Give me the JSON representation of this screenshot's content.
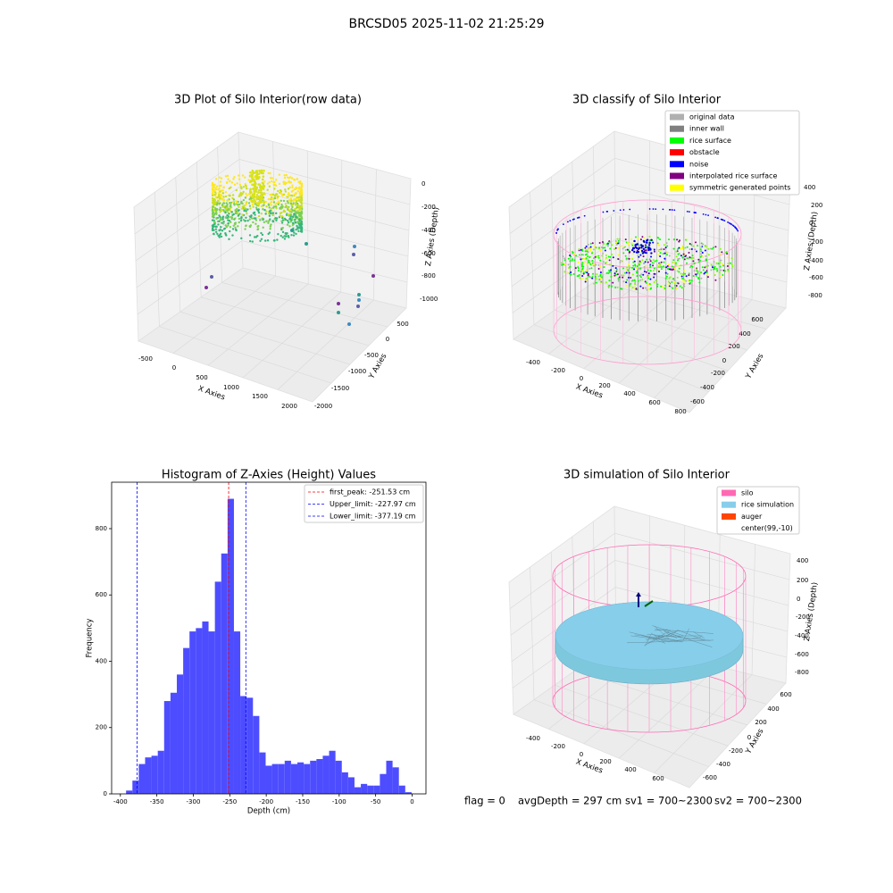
{
  "title": "BRCSD05 2025-11-02 21:25:29",
  "chart_data": [
    {
      "type": "scatter3d",
      "title": "3D Plot of Silo Interior(row data)",
      "x_label": "X Axies",
      "y_label": "Y Axies",
      "z_label": "Z Axies (Depth)",
      "xticks": [
        -500,
        0,
        500,
        1000,
        1500,
        2000
      ],
      "yticks": [
        500,
        0,
        -500,
        -1000,
        -1500,
        -2000
      ],
      "zticks": [
        0,
        -200,
        -400,
        -600,
        -800,
        -1000
      ]
    },
    {
      "type": "scatter3d",
      "title": "3D classify of Silo Interior",
      "x_label": "X Axies",
      "y_label": "Y Axies",
      "z_label": "Z Axies (Depth)",
      "xticks": [
        -400,
        -200,
        0,
        200,
        400,
        600,
        800
      ],
      "yticks": [
        600,
        400,
        200,
        0,
        -200,
        -400,
        -600
      ],
      "zticks": [
        400,
        200,
        0,
        -200,
        -400,
        -600,
        -800
      ],
      "legend": [
        {
          "name": "original data",
          "color": "#b0b0b0"
        },
        {
          "name": "inner wall",
          "color": "#808080"
        },
        {
          "name": "rice surface",
          "color": "#00ff00"
        },
        {
          "name": "obstacle",
          "color": "#ff0000"
        },
        {
          "name": "noise",
          "color": "#0000ff"
        },
        {
          "name": "interpolated rice surface",
          "color": "#800080"
        },
        {
          "name": "symmetric generated points",
          "color": "#ffff00"
        }
      ]
    },
    {
      "type": "histogram",
      "title": "Histogram of Z-Axies (Height) Values",
      "x_label": "Depth (cm)",
      "y_label": "Frequency",
      "color": "#4d4dff",
      "bins": [
        -392.2,
        -383.5,
        -374.8,
        -366.1,
        -357.4,
        -348.7,
        -340.0,
        -331.3,
        -322.6,
        -313.9,
        -305.2,
        -296.5,
        -287.8,
        -279.1,
        -270.4,
        -261.7,
        -253.0,
        -244.3,
        -235.6,
        -226.9,
        -218.2,
        -209.5,
        -200.8,
        -192.1,
        -183.4,
        -174.7,
        -166.0,
        -157.3,
        -148.6,
        -139.9,
        -131.2,
        -122.5,
        -113.8,
        -105.1,
        -96.4,
        -87.7,
        -79.0,
        -70.3,
        -61.6,
        -52.9,
        -44.2,
        -35.5,
        -26.8,
        -18.1,
        -9.4,
        -0.7
      ],
      "values": [
        10,
        40,
        90,
        110,
        115,
        130,
        280,
        305,
        360,
        440,
        490,
        500,
        520,
        490,
        640,
        725,
        890,
        490,
        295,
        290,
        235,
        125,
        85,
        90,
        90,
        100,
        90,
        95,
        90,
        100,
        105,
        115,
        130,
        100,
        65,
        50,
        20,
        30,
        25,
        25,
        60,
        100,
        80,
        25,
        5
      ],
      "xlim": [
        -412,
        19
      ],
      "ylim": [
        0,
        940
      ],
      "xticks": [
        -400,
        -350,
        -300,
        -250,
        -200,
        -150,
        -100,
        -50,
        0
      ],
      "yticks": [
        0,
        200,
        400,
        600,
        800
      ],
      "lines": [
        {
          "name": "first_peak: -251.53 cm",
          "value": -251.53,
          "color": "#ff0000"
        },
        {
          "name": "Upper_limit: -227.97 cm",
          "value": -227.97,
          "color": "#0000ff"
        },
        {
          "name": "Lower_limit: -377.19 cm",
          "value": -377.19,
          "color": "#0000ff"
        }
      ]
    },
    {
      "type": "surface3d",
      "title": "3D simulation of Silo Interior",
      "x_label": "X Axies",
      "y_label": "Y Axies",
      "z_label": "Z Axies (Depth)",
      "xticks": [
        -400,
        -200,
        0,
        200,
        400,
        600
      ],
      "yticks": [
        600,
        400,
        200,
        0,
        -200,
        -400,
        -600
      ],
      "zticks": [
        400,
        200,
        0,
        -200,
        -400,
        -600,
        -800
      ],
      "legend": [
        {
          "name": "silo",
          "color": "#ff69b4"
        },
        {
          "name": "rice simulation",
          "color": "#87ceeb"
        },
        {
          "name": "auger",
          "color": "#ff4500"
        },
        {
          "name": "center(99,-10)",
          "color": "#ffffff"
        }
      ]
    }
  ],
  "footer": [
    "flag = 0",
    "avgDepth = 297 cm",
    "sv1 = 700~2300",
    "sv2 = 700~2300"
  ]
}
